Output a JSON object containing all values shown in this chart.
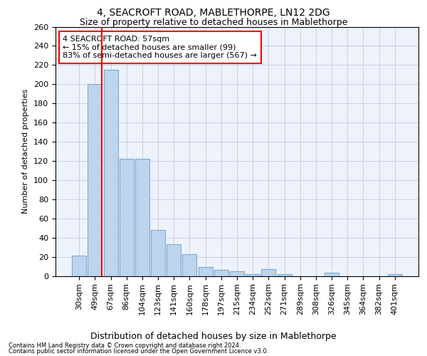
{
  "title1": "4, SEACROFT ROAD, MABLETHORPE, LN12 2DG",
  "title2": "Size of property relative to detached houses in Mablethorpe",
  "xlabel": "Distribution of detached houses by size in Mablethorpe",
  "ylabel": "Number of detached properties",
  "categories": [
    "30sqm",
    "49sqm",
    "67sqm",
    "86sqm",
    "104sqm",
    "123sqm",
    "141sqm",
    "160sqm",
    "178sqm",
    "197sqm",
    "215sqm",
    "234sqm",
    "252sqm",
    "271sqm",
    "289sqm",
    "308sqm",
    "326sqm",
    "345sqm",
    "364sqm",
    "382sqm",
    "401sqm"
  ],
  "values": [
    21,
    200,
    215,
    122,
    122,
    48,
    33,
    23,
    9,
    6,
    5,
    2,
    7,
    2,
    0,
    0,
    3,
    0,
    0,
    0,
    2
  ],
  "bar_color": "#bdd4ed",
  "bar_edge_color": "#7aaad4",
  "vline_x": 1.44,
  "vline_color": "red",
  "annotation_text": "4 SEACROFT ROAD: 57sqm\n← 15% of detached houses are smaller (99)\n83% of semi-detached houses are larger (567) →",
  "annotation_box_color": "white",
  "annotation_box_edge": "red",
  "footer1": "Contains HM Land Registry data © Crown copyright and database right 2024.",
  "footer2": "Contains public sector information licensed under the Open Government Licence v3.0.",
  "bg_color": "#eef2fb",
  "ylim": [
    0,
    260
  ],
  "yticks": [
    0,
    20,
    40,
    60,
    80,
    100,
    120,
    140,
    160,
    180,
    200,
    220,
    240,
    260
  ],
  "grid_color": "#c8d0e8",
  "title1_fontsize": 10,
  "title2_fontsize": 9,
  "xlabel_fontsize": 9,
  "ylabel_fontsize": 8,
  "tick_fontsize": 8,
  "annot_fontsize": 8,
  "footer_fontsize": 6
}
